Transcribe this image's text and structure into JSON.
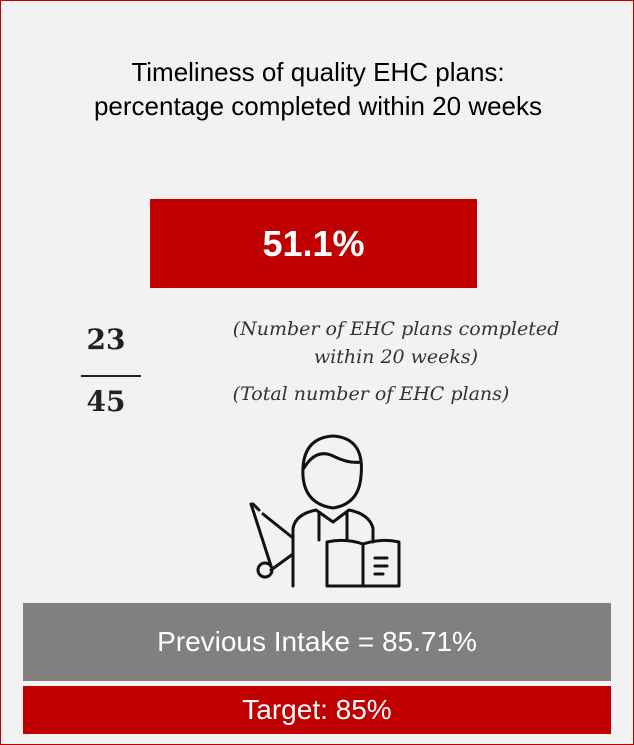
{
  "card": {
    "title_lines": [
      "Timeliness of quality EHC plans:",
      "percentage completed within 20 weeks"
    ],
    "value": "51.1%",
    "numerator": 23,
    "denominator": 45,
    "numerator_note_lines": [
      "(Number of EHC plans completed",
      "within 20 weeks)"
    ],
    "denominator_note": "(Total number of EHC plans)",
    "previous": "Previous Intake = 85.71%",
    "target": "Target: 85%"
  }
}
